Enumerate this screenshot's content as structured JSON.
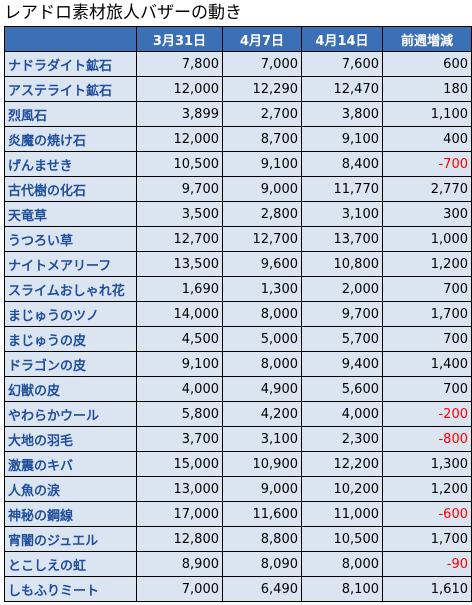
{
  "title": "レアドロ素材旅人バザーの動き",
  "columns": [
    "",
    "3月31日",
    "4月7日",
    "4月14日",
    "前週増減"
  ],
  "colors": {
    "header_bg": "#3b6fb6",
    "cell_bg": "#dbe5f1",
    "name_text": "#1f4e9c",
    "negative_text": "#ff0000"
  },
  "rows": [
    {
      "name": "ナドラダイト鉱石",
      "mar31": "7,800",
      "apr7": "7,000",
      "apr14": "7,600",
      "change": "600"
    },
    {
      "name": "アステライト鉱石",
      "mar31": "12,000",
      "apr7": "12,290",
      "apr14": "12,470",
      "change": "180"
    },
    {
      "name": "烈風石",
      "mar31": "3,899",
      "apr7": "2,700",
      "apr14": "3,800",
      "change": "1,100"
    },
    {
      "name": "炎魔の焼け石",
      "mar31": "12,000",
      "apr7": "8,700",
      "apr14": "9,100",
      "change": "400"
    },
    {
      "name": "げんませき",
      "mar31": "10,500",
      "apr7": "9,100",
      "apr14": "8,400",
      "change": "-700"
    },
    {
      "name": "古代樹の化石",
      "mar31": "9,700",
      "apr7": "9,000",
      "apr14": "11,770",
      "change": "2,770"
    },
    {
      "name": "天竜草",
      "mar31": "3,500",
      "apr7": "2,800",
      "apr14": "3,100",
      "change": "300"
    },
    {
      "name": "うつろい草",
      "mar31": "12,700",
      "apr7": "12,700",
      "apr14": "13,700",
      "change": "1,000"
    },
    {
      "name": "ナイトメアリーフ",
      "mar31": "13,500",
      "apr7": "9,600",
      "apr14": "10,800",
      "change": "1,200"
    },
    {
      "name": "スライムおしゃれ花",
      "mar31": "1,690",
      "apr7": "1,300",
      "apr14": "2,000",
      "change": "700"
    },
    {
      "name": "まじゅうのツノ",
      "mar31": "14,000",
      "apr7": "8,000",
      "apr14": "9,700",
      "change": "1,700"
    },
    {
      "name": "まじゅうの皮",
      "mar31": "4,500",
      "apr7": "5,000",
      "apr14": "5,700",
      "change": "700"
    },
    {
      "name": "ドラゴンの皮",
      "mar31": "9,100",
      "apr7": "8,000",
      "apr14": "9,400",
      "change": "1,400"
    },
    {
      "name": "幻獣の皮",
      "mar31": "4,000",
      "apr7": "4,900",
      "apr14": "5,600",
      "change": "700"
    },
    {
      "name": "やわらかウール",
      "mar31": "5,800",
      "apr7": "4,200",
      "apr14": "4,000",
      "change": "-200"
    },
    {
      "name": "大地の羽毛",
      "mar31": "3,700",
      "apr7": "3,100",
      "apr14": "2,300",
      "change": "-800"
    },
    {
      "name": "激震のキバ",
      "mar31": "15,000",
      "apr7": "10,900",
      "apr14": "12,200",
      "change": "1,300"
    },
    {
      "name": "人魚の涙",
      "mar31": "13,000",
      "apr7": "9,000",
      "apr14": "10,200",
      "change": "1,200"
    },
    {
      "name": "神秘の鋼線",
      "mar31": "17,000",
      "apr7": "11,600",
      "apr14": "11,000",
      "change": "-600"
    },
    {
      "name": "宵闇のジュエル",
      "mar31": "12,800",
      "apr7": "8,800",
      "apr14": "10,500",
      "change": "1,700"
    },
    {
      "name": "とこしえの虹",
      "mar31": "8,900",
      "apr7": "8,090",
      "apr14": "8,000",
      "change": "-90"
    },
    {
      "name": "しもふりミート",
      "mar31": "7,000",
      "apr7": "6,490",
      "apr14": "8,100",
      "change": "1,610"
    }
  ]
}
